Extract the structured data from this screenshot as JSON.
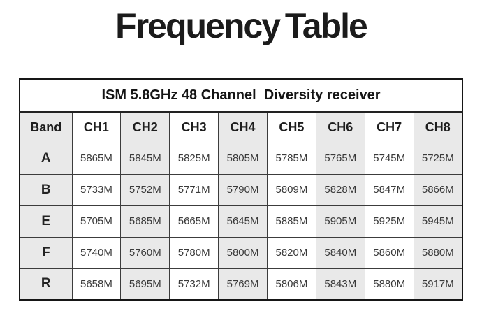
{
  "page_title": "Frequency Table",
  "colors": {
    "shaded_cell": "#e9e9e9",
    "plain_cell": "#ffffff",
    "border": "#3c3c3c",
    "outer_border": "#161616",
    "text": "#3a3a3a"
  },
  "chart_data": {
    "type": "table",
    "title": "Frequency Table",
    "caption": "ISM 5.8GHz 48 Channel  Diversity receiver",
    "columns": [
      "Band",
      "CH1",
      "CH2",
      "CH3",
      "CH4",
      "CH5",
      "CH6",
      "CH7",
      "CH8"
    ],
    "rows": [
      {
        "band": "A",
        "values": [
          "5865M",
          "5845M",
          "5825M",
          "5805M",
          "5785M",
          "5765M",
          "5745M",
          "5725M"
        ]
      },
      {
        "band": "B",
        "values": [
          "5733M",
          "5752M",
          "5771M",
          "5790M",
          "5809M",
          "5828M",
          "5847M",
          "5866M"
        ]
      },
      {
        "band": "E",
        "values": [
          "5705M",
          "5685M",
          "5665M",
          "5645M",
          "5885M",
          "5905M",
          "5925M",
          "5945M"
        ]
      },
      {
        "band": "F",
        "values": [
          "5740M",
          "5760M",
          "5780M",
          "5800M",
          "5820M",
          "5840M",
          "5860M",
          "5880M"
        ]
      },
      {
        "band": "R",
        "values": [
          "5658M",
          "5695M",
          "5732M",
          "5769M",
          "5806M",
          "5843M",
          "5880M",
          "5917M"
        ]
      }
    ],
    "layout": {
      "band_column_shaded": true,
      "column_shading_pattern": "alternating, Band/CH2/CH4/CH6/CH8 shaded gray, CH1/CH3/CH5/CH7 white",
      "grid": true
    }
  }
}
